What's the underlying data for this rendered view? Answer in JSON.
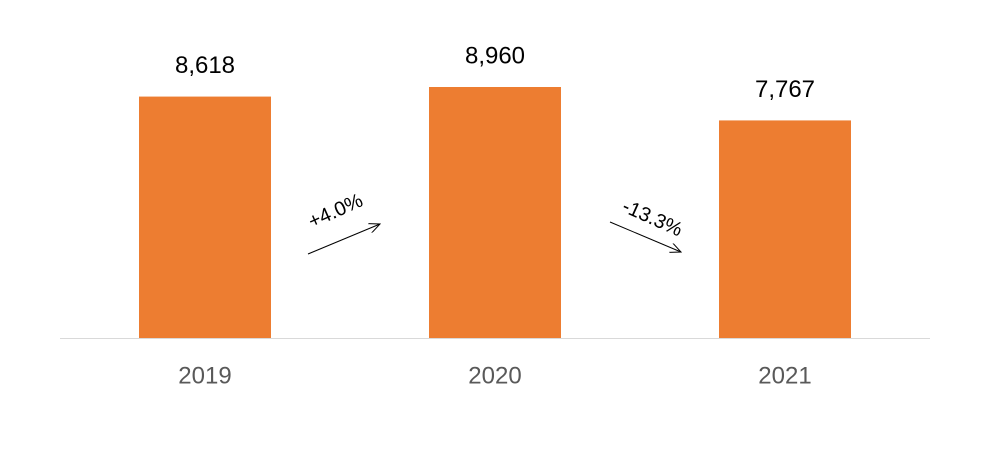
{
  "chart_data": {
    "type": "bar",
    "categories": [
      "2019",
      "2020",
      "2021"
    ],
    "values": [
      8618,
      8960,
      7767
    ],
    "value_labels": [
      "8,618",
      "8,960",
      "7,767"
    ],
    "color": "#ed7d31",
    "annotations": [
      "+4.0%",
      "-13.3%"
    ]
  }
}
